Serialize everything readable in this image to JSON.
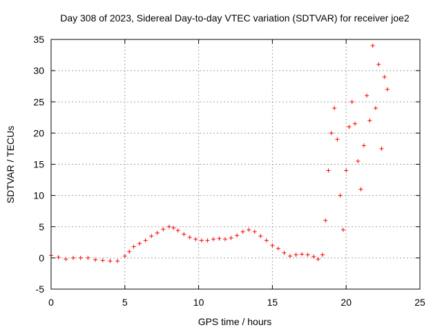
{
  "chart_data": {
    "type": "scatter",
    "title": "Day 308 of 2023, Sidereal Day-to-day VTEC variation (SDTVAR) for receiver joe2",
    "xlabel": "GPS time / hours",
    "ylabel": "SDTVAR / TECUs",
    "xlim": [
      0,
      25
    ],
    "ylim": [
      -5,
      35
    ],
    "xticks": [
      0,
      5,
      10,
      15,
      20,
      25
    ],
    "yticks": [
      -5,
      0,
      5,
      10,
      15,
      20,
      25,
      30,
      35
    ],
    "grid": true,
    "marker": "+",
    "color": "#ff0000",
    "series": [
      {
        "name": "SDTVAR",
        "x": [
          0.0,
          0.5,
          1.0,
          1.5,
          2.0,
          2.5,
          3.0,
          3.5,
          4.0,
          4.5,
          5.0,
          5.3,
          5.6,
          6.0,
          6.4,
          6.8,
          7.2,
          7.6,
          8.0,
          8.3,
          8.6,
          9.0,
          9.4,
          9.8,
          10.2,
          10.6,
          11.0,
          11.4,
          11.8,
          12.2,
          12.6,
          13.0,
          13.4,
          13.8,
          14.2,
          14.6,
          15.0,
          15.4,
          15.8,
          16.2,
          16.6,
          17.0,
          17.4,
          17.8,
          18.1,
          18.4,
          18.6,
          18.8,
          19.0,
          19.2,
          19.4,
          19.6,
          19.8,
          20.0,
          20.2,
          20.4,
          20.6,
          20.8,
          21.0,
          21.2,
          21.4,
          21.6,
          21.8,
          22.0,
          22.2,
          22.4,
          22.6,
          22.8
        ],
        "values": [
          0.4,
          0.1,
          -0.2,
          0.0,
          0.0,
          0.0,
          -0.3,
          -0.4,
          -0.5,
          -0.5,
          0.3,
          1.0,
          1.8,
          2.3,
          2.8,
          3.5,
          4.0,
          4.6,
          5.0,
          4.8,
          4.4,
          3.8,
          3.3,
          3.0,
          2.8,
          2.8,
          3.0,
          3.1,
          3.0,
          3.2,
          3.6,
          4.2,
          4.5,
          4.2,
          3.5,
          2.8,
          2.0,
          1.5,
          0.8,
          0.3,
          0.5,
          0.6,
          0.5,
          0.2,
          -0.2,
          0.5,
          6.0,
          14.0,
          20.0,
          24.0,
          19.0,
          10.0,
          4.5,
          14.0,
          21.0,
          25.0,
          21.5,
          15.5,
          11.0,
          18.0,
          26.0,
          22.0,
          34.0,
          24.0,
          31.0,
          17.5,
          29.0,
          27.0
        ]
      }
    ]
  }
}
